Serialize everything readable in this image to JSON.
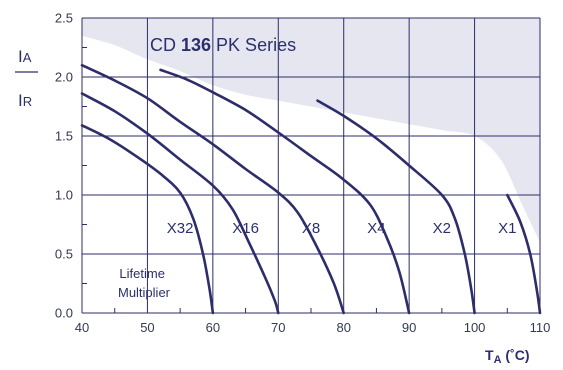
{
  "chart_data": {
    "type": "line",
    "title_parts": {
      "prefix": "CD ",
      "number": "136",
      "suffix": " PK Series"
    },
    "ylabel": {
      "numerator": "IA",
      "numerator_main": "I",
      "numerator_sub": "A",
      "denominator": "IR",
      "denominator_main": "I",
      "denominator_sub": "R"
    },
    "xlabel": {
      "main": "T",
      "sub": "A",
      "unit": " (˚C)"
    },
    "xlim": [
      40,
      110
    ],
    "ylim": [
      0.0,
      2.5
    ],
    "xticks": [
      "40",
      "50",
      "60",
      "70",
      "80",
      "90",
      "100",
      "110"
    ],
    "yticks": [
      "0.0",
      "0.5",
      "1.0",
      "1.5",
      "2.0",
      "2.5"
    ],
    "grid": true,
    "note": [
      "Lifetime",
      "Multiplier"
    ],
    "colors": {
      "curve": "#2c2d6a",
      "grid": "#2c2d6a",
      "shade": "#e6e6f0",
      "axis": "#2c2d6a"
    },
    "series": [
      {
        "label": "X32",
        "points": [
          [
            40,
            1.59
          ],
          [
            44,
            1.48
          ],
          [
            48,
            1.34
          ],
          [
            52,
            1.18
          ],
          [
            55,
            1.02
          ],
          [
            57,
            0.8
          ],
          [
            58.5,
            0.5
          ],
          [
            59.5,
            0.2
          ],
          [
            60,
            0.0
          ]
        ]
      },
      {
        "label": "X16",
        "points": [
          [
            40,
            1.86
          ],
          [
            45,
            1.71
          ],
          [
            50,
            1.52
          ],
          [
            55,
            1.3
          ],
          [
            60,
            1.08
          ],
          [
            63,
            0.88
          ],
          [
            65.5,
            0.6
          ],
          [
            68,
            0.3
          ],
          [
            69.5,
            0.1
          ],
          [
            70,
            0.0
          ]
        ]
      },
      {
        "label": "X8",
        "points": [
          [
            40,
            2.1
          ],
          [
            45,
            1.97
          ],
          [
            50,
            1.82
          ],
          [
            55,
            1.62
          ],
          [
            60,
            1.43
          ],
          [
            65,
            1.22
          ],
          [
            70,
            1.02
          ],
          [
            73,
            0.85
          ],
          [
            76,
            0.55
          ],
          [
            78.5,
            0.25
          ],
          [
            80,
            0.0
          ]
        ]
      },
      {
        "label": "X4",
        "points": [
          [
            52,
            2.06
          ],
          [
            56,
            1.98
          ],
          [
            60,
            1.87
          ],
          [
            65,
            1.72
          ],
          [
            70,
            1.53
          ],
          [
            75,
            1.33
          ],
          [
            80,
            1.13
          ],
          [
            84,
            0.92
          ],
          [
            86.5,
            0.65
          ],
          [
            88.5,
            0.35
          ],
          [
            90,
            0.0
          ]
        ]
      },
      {
        "label": "X2",
        "points": [
          [
            76,
            1.8
          ],
          [
            80,
            1.67
          ],
          [
            85,
            1.48
          ],
          [
            90,
            1.25
          ],
          [
            95,
            1.0
          ],
          [
            97,
            0.8
          ],
          [
            98.5,
            0.5
          ],
          [
            99.5,
            0.2
          ],
          [
            100,
            0.0
          ]
        ]
      },
      {
        "label": "X1",
        "points": [
          [
            105,
            1.0
          ],
          [
            107,
            0.77
          ],
          [
            108.5,
            0.5
          ],
          [
            109.5,
            0.2
          ],
          [
            110,
            0.0
          ]
        ]
      }
    ],
    "shaded_region_boundary": [
      [
        40,
        2.5
      ],
      [
        40,
        2.35
      ],
      [
        45,
        2.27
      ],
      [
        50,
        2.15
      ],
      [
        55,
        2.05
      ],
      [
        60,
        1.93
      ],
      [
        65,
        1.85
      ],
      [
        70,
        1.8
      ],
      [
        75,
        1.75
      ],
      [
        80,
        1.7
      ],
      [
        85,
        1.65
      ],
      [
        90,
        1.6
      ],
      [
        95,
        1.55
      ],
      [
        100,
        1.5
      ],
      [
        104,
        1.3
      ],
      [
        107,
        0.95
      ],
      [
        110,
        0.6
      ],
      [
        110,
        2.5
      ]
    ]
  }
}
